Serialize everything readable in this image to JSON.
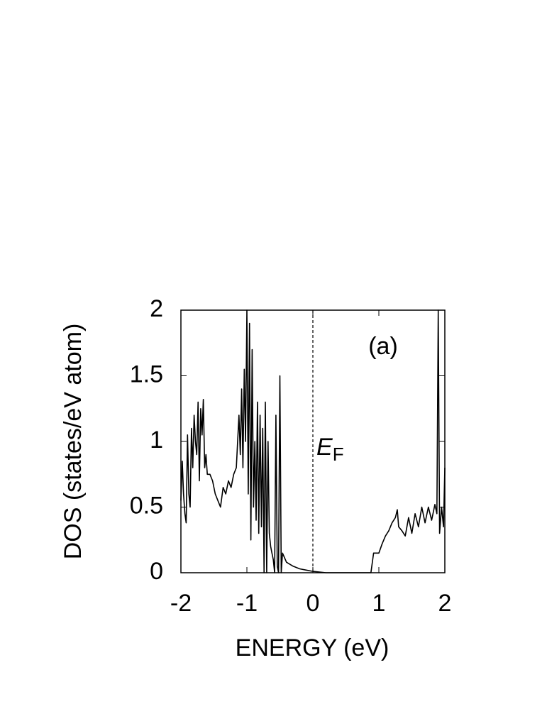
{
  "chart_data": {
    "type": "line",
    "x_label": "ENERGY (eV)",
    "y_label": "DOS (states/eV atom)",
    "panel_label": "(a)",
    "fermi_level": {
      "x": 0,
      "label": "E",
      "subscript": "F"
    },
    "x": [
      -2.0,
      -1.98,
      -1.96,
      -1.94,
      -1.92,
      -1.9,
      -1.88,
      -1.86,
      -1.84,
      -1.82,
      -1.8,
      -1.78,
      -1.76,
      -1.74,
      -1.72,
      -1.7,
      -1.68,
      -1.66,
      -1.64,
      -1.62,
      -1.6,
      -1.56,
      -1.52,
      -1.48,
      -1.44,
      -1.4,
      -1.36,
      -1.32,
      -1.28,
      -1.24,
      -1.2,
      -1.16,
      -1.12,
      -1.1,
      -1.08,
      -1.06,
      -1.04,
      -1.02,
      -1.0,
      -0.98,
      -0.96,
      -0.94,
      -0.92,
      -0.9,
      -0.88,
      -0.86,
      -0.84,
      -0.82,
      -0.8,
      -0.78,
      -0.76,
      -0.74,
      -0.72,
      -0.7,
      -0.68,
      -0.66,
      -0.64,
      -0.62,
      -0.6,
      -0.58,
      -0.56,
      -0.54,
      -0.52,
      -0.5,
      -0.48,
      -0.46,
      -0.4,
      -0.3,
      -0.2,
      -0.1,
      0,
      0.2,
      0.5,
      0.88,
      0.92,
      1.0,
      1.05,
      1.1,
      1.15,
      1.2,
      1.25,
      1.28,
      1.3,
      1.35,
      1.4,
      1.45,
      1.5,
      1.55,
      1.6,
      1.65,
      1.7,
      1.75,
      1.8,
      1.85,
      1.88,
      1.9,
      1.92,
      1.95,
      1.98,
      2.0
    ],
    "series": [
      {
        "color": "#000000",
        "values": [
          0.55,
          0.85,
          0.6,
          0.45,
          0.38,
          1.05,
          0.6,
          0.5,
          1.1,
          0.8,
          1.2,
          1.0,
          0.9,
          1.3,
          0.7,
          1.25,
          1.05,
          1.32,
          0.8,
          0.9,
          0.75,
          0.75,
          0.7,
          0.6,
          0.55,
          0.5,
          0.65,
          0.6,
          0.7,
          0.65,
          0.75,
          0.8,
          1.2,
          0.9,
          1.4,
          0.8,
          1.55,
          1.0,
          2.0,
          0.6,
          1.9,
          0.25,
          1.7,
          0.5,
          1.0,
          0.4,
          1.3,
          0.3,
          1.2,
          0.35,
          1.1,
          0.0,
          1.3,
          0.0,
          1.0,
          0.3,
          0.2,
          0.15,
          0.1,
          0.0,
          1.2,
          0.05,
          0.0,
          1.5,
          0.0,
          0.15,
          0.08,
          0.05,
          0.03,
          0.02,
          0.01,
          0,
          0,
          0,
          0.15,
          0.15,
          0.22,
          0.28,
          0.32,
          0.38,
          0.42,
          0.48,
          0.35,
          0.32,
          0.28,
          0.42,
          0.3,
          0.45,
          0.35,
          0.5,
          0.38,
          0.5,
          0.4,
          0.52,
          0.45,
          2.0,
          0.3,
          0.5,
          0.35,
          0.8
        ]
      }
    ],
    "xlim": [
      -2,
      2
    ],
    "ylim": [
      0,
      2
    ],
    "xticks": [
      -2,
      -1,
      0,
      1,
      2
    ],
    "yticks": [
      0,
      0.5,
      1,
      1.5,
      2
    ]
  }
}
